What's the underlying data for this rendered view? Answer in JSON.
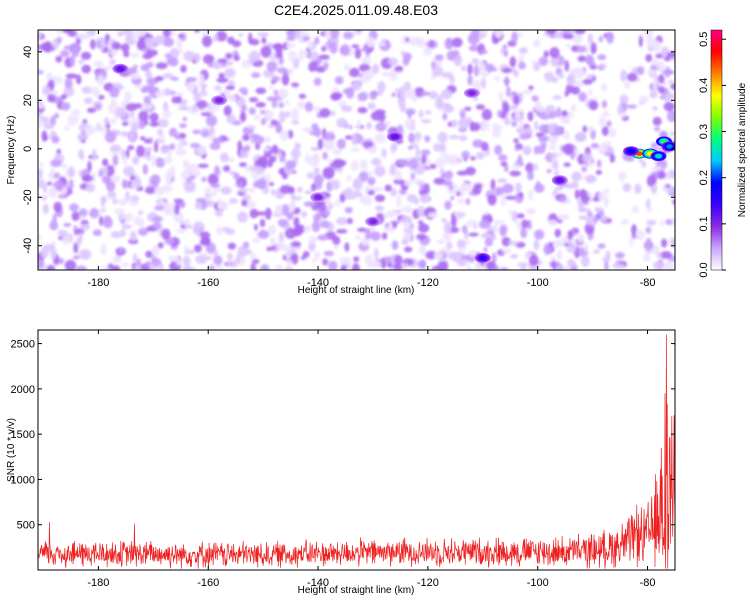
{
  "figure": {
    "title": "C2E4.2025.011.09.48.E03"
  },
  "chart_data": [
    {
      "type": "heatmap",
      "title": "C2E4.2025.011.09.48.E03",
      "xlabel": "Height of straight line (km)",
      "ylabel": "Frequency (Hz)",
      "xlim": [
        -191,
        -75
      ],
      "ylim": [
        -50,
        49
      ],
      "xticks": [
        -180,
        -160,
        -140,
        -120,
        -100,
        -80
      ],
      "yticks": [
        -40,
        -20,
        0,
        20,
        40
      ],
      "colorbar": {
        "label": "Normalized spectral amplitude",
        "range": [
          0,
          0.52
        ],
        "ticks": [
          0.0,
          0.1,
          0.2,
          0.3,
          0.4,
          0.5
        ],
        "colors": [
          "#ffffff",
          "#c9a6ff",
          "#8a2be2",
          "#3a00ff",
          "#0000ff",
          "#00c8ff",
          "#00ff80",
          "#80ff00",
          "#ffff00",
          "#ff8000",
          "#ff0000",
          "#ff0080"
        ]
      },
      "background_level": "0.02-0.08 broadband noise",
      "hotspots": [
        {
          "x": -81.5,
          "y": -2,
          "v": 0.45
        },
        {
          "x": -79.5,
          "y": -2,
          "v": 0.38
        },
        {
          "x": -78,
          "y": -3,
          "v": 0.25
        },
        {
          "x": -77,
          "y": 3,
          "v": 0.3
        },
        {
          "x": -76,
          "y": 1,
          "v": 0.22
        },
        {
          "x": -83,
          "y": -1,
          "v": 0.18
        },
        {
          "x": -110,
          "y": -45,
          "v": 0.15
        },
        {
          "x": -126,
          "y": 5,
          "v": 0.12
        },
        {
          "x": -176,
          "y": 33,
          "v": 0.12
        },
        {
          "x": -158,
          "y": 20,
          "v": 0.1
        },
        {
          "x": -140,
          "y": -20,
          "v": 0.1
        },
        {
          "x": -96,
          "y": -13,
          "v": 0.12
        },
        {
          "x": -130,
          "y": -30,
          "v": 0.1
        },
        {
          "x": -112,
          "y": 23,
          "v": 0.1
        }
      ]
    },
    {
      "type": "line",
      "xlabel": "Height of straight line (km)",
      "ylabel": "SNR (10 * v/v)",
      "xlim": [
        -191,
        -75
      ],
      "ylim": [
        0,
        2650
      ],
      "xticks": [
        -180,
        -160,
        -140,
        -120,
        -100,
        -80
      ],
      "yticks": [
        500,
        1000,
        1500,
        2000,
        2500
      ],
      "line_color": "#ee2020",
      "envelope": [
        {
          "x": -191,
          "base": 180,
          "amp": 180
        },
        {
          "x": -150,
          "base": 170,
          "amp": 170
        },
        {
          "x": -125,
          "base": 200,
          "amp": 180
        },
        {
          "x": -95,
          "base": 200,
          "amp": 200
        },
        {
          "x": -88,
          "base": 230,
          "amp": 240
        },
        {
          "x": -84,
          "base": 300,
          "amp": 320
        },
        {
          "x": -80,
          "base": 380,
          "amp": 420
        },
        {
          "x": -78,
          "base": 550,
          "amp": 700
        },
        {
          "x": -77,
          "base": 700,
          "amp": 1100
        },
        {
          "x": -76.5,
          "base": 900,
          "amp": 1800
        },
        {
          "x": -76,
          "base": 800,
          "amp": 1300
        },
        {
          "x": -75,
          "base": 900,
          "amp": 900
        }
      ],
      "peaks": [
        {
          "x": -76.6,
          "y": 2600
        },
        {
          "x": -76.9,
          "y": 1950
        },
        {
          "x": -75.6,
          "y": 1700
        },
        {
          "x": -77.5,
          "y": 1350
        },
        {
          "x": -82.0,
          "y": 720
        },
        {
          "x": -173.5,
          "y": 510
        },
        {
          "x": -189,
          "y": 530
        }
      ]
    }
  ]
}
